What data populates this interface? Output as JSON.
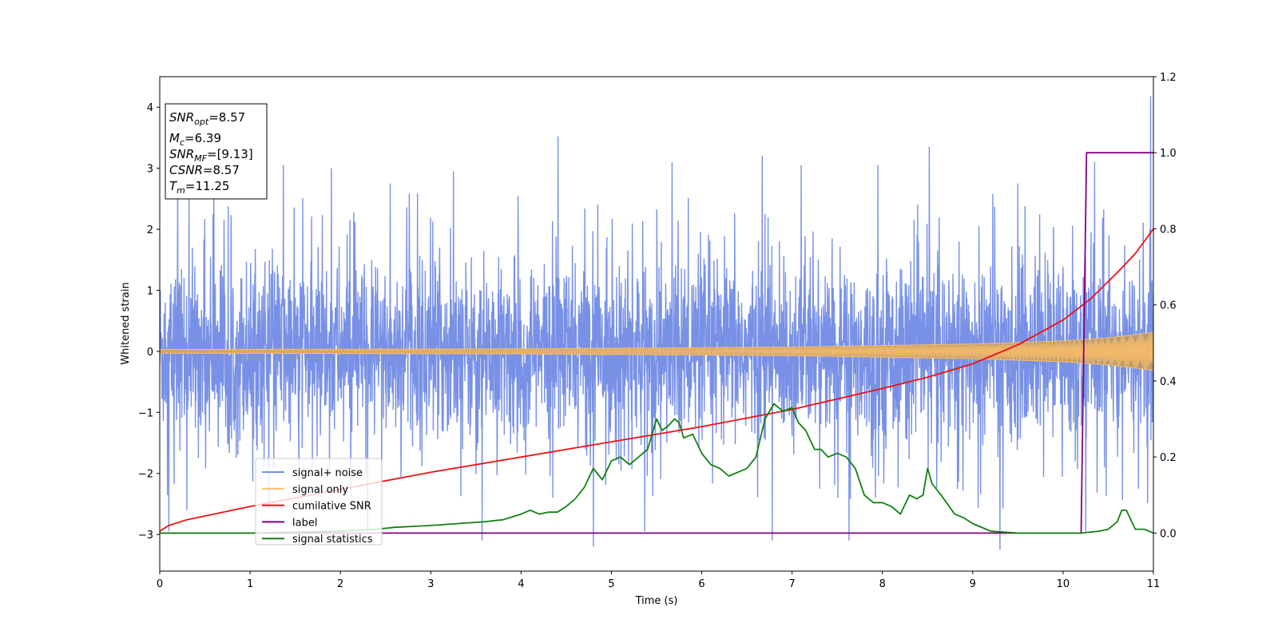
{
  "chart_data": {
    "type": "line",
    "xlabel": "Time (s)",
    "ylabel_left": "Whitened strain",
    "ylabel_right": "",
    "xlim": [
      0,
      11
    ],
    "ylim_left": [
      -3.6,
      4.5
    ],
    "ylim_right": [
      -0.1,
      1.2
    ],
    "xticks": [
      "0",
      "1",
      "2",
      "3",
      "4",
      "5",
      "6",
      "7",
      "8",
      "9",
      "10",
      "11"
    ],
    "yticks_left": [
      "4",
      "3",
      "2",
      "1",
      "0",
      "−1",
      "−2",
      "−3"
    ],
    "yticks_right": [
      "1.2",
      "1.0",
      "0.8",
      "0.6",
      "0.4",
      "0.2",
      "0.0"
    ],
    "grid": false,
    "legend_position": "lower-left",
    "info_box": {
      "lines": [
        {
          "base": "SNR",
          "sub": "opt",
          "eq": "=8.57"
        },
        {
          "base": "M",
          "sub": "c",
          "eq": "=6.39"
        },
        {
          "base": "SNR",
          "sub": "MF",
          "eq": "=[9.13]"
        },
        {
          "base": "CSNR",
          "sub": "",
          "eq": "=8.57"
        },
        {
          "base": "T",
          "sub": "m",
          "eq": "=11.25"
        }
      ]
    },
    "series": [
      {
        "name": "signal+ noise",
        "axis": "left",
        "color": "#7891e6",
        "description_type": "noise",
        "envelope": {
          "typical_max": 2.2,
          "typical_min": -1.8
        },
        "peaks": [
          {
            "x": 0.2,
            "y": 2.9
          },
          {
            "x": 0.6,
            "y": 2.75
          },
          {
            "x": 1.37,
            "y": 3.05
          },
          {
            "x": 1.9,
            "y": 3.0
          },
          {
            "x": 2.55,
            "y": 2.75
          },
          {
            "x": 3.25,
            "y": 2.95
          },
          {
            "x": 4.41,
            "y": 3.52
          },
          {
            "x": 5.67,
            "y": 3.1
          },
          {
            "x": 6.67,
            "y": 3.2
          },
          {
            "x": 7.1,
            "y": 3.05
          },
          {
            "x": 7.95,
            "y": 3.05
          },
          {
            "x": 8.52,
            "y": 3.35
          },
          {
            "x": 9.5,
            "y": 2.75
          },
          {
            "x": 10.35,
            "y": 3.1
          },
          {
            "x": 10.97,
            "y": 4.18
          }
        ],
        "troughs": [
          {
            "x": 0.1,
            "y": -2.95
          },
          {
            "x": 0.3,
            "y": -2.6
          },
          {
            "x": 2.3,
            "y": -2.95
          },
          {
            "x": 3.57,
            "y": -3.1
          },
          {
            "x": 4.8,
            "y": -3.2
          },
          {
            "x": 5.37,
            "y": -2.95
          },
          {
            "x": 6.78,
            "y": -3.1
          },
          {
            "x": 7.63,
            "y": -3.1
          },
          {
            "x": 9.3,
            "y": -3.25
          },
          {
            "x": 10.25,
            "y": -2.95
          }
        ]
      },
      {
        "name": "signal only",
        "axis": "left",
        "color": "#ffbf66",
        "description_type": "chirp",
        "amplitude": [
          {
            "x": 0,
            "y": 0.03
          },
          {
            "x": 4,
            "y": 0.04
          },
          {
            "x": 7,
            "y": 0.07
          },
          {
            "x": 9,
            "y": 0.12
          },
          {
            "x": 10,
            "y": 0.17
          },
          {
            "x": 10.5,
            "y": 0.22
          },
          {
            "x": 11,
            "y": 0.31
          }
        ]
      },
      {
        "name": "cumilative SNR",
        "axis": "right",
        "color": "#ee1111",
        "x": [
          0,
          0.1,
          0.3,
          0.6,
          1,
          2,
          3,
          4,
          5,
          6,
          7,
          8,
          8.5,
          9,
          9.5,
          10,
          10.3,
          10.6,
          10.8,
          11
        ],
        "y": [
          0.005,
          0.02,
          0.035,
          0.05,
          0.07,
          0.115,
          0.16,
          0.2,
          0.24,
          0.28,
          0.325,
          0.38,
          0.41,
          0.445,
          0.495,
          0.56,
          0.615,
          0.685,
          0.735,
          0.8
        ]
      },
      {
        "name": "label",
        "axis": "right",
        "color": "#800080",
        "x": [
          0,
          10.2,
          10.26,
          11
        ],
        "y": [
          0,
          0,
          1,
          1
        ]
      },
      {
        "name": "signal statistics",
        "axis": "right",
        "color": "#118111",
        "x": [
          0,
          1,
          2,
          2.4,
          2.6,
          3,
          3.3,
          3.6,
          3.8,
          4,
          4.1,
          4.2,
          4.3,
          4.4,
          4.5,
          4.6,
          4.7,
          4.8,
          4.9,
          5,
          5.1,
          5.2,
          5.3,
          5.4,
          5.5,
          5.56,
          5.62,
          5.7,
          5.75,
          5.8,
          5.9,
          6,
          6.1,
          6.2,
          6.3,
          6.4,
          6.5,
          6.6,
          6.7,
          6.8,
          6.9,
          7,
          7.07,
          7.15,
          7.25,
          7.32,
          7.4,
          7.5,
          7.6,
          7.7,
          7.8,
          7.9,
          8,
          8.1,
          8.2,
          8.3,
          8.38,
          8.45,
          8.5,
          8.55,
          8.65,
          8.8,
          8.9,
          9,
          9.2,
          9.5,
          10,
          10.2,
          10.4,
          10.5,
          10.6,
          10.65,
          10.7,
          10.8,
          10.9,
          11
        ],
        "y": [
          0,
          0,
          0.005,
          0.01,
          0.015,
          0.02,
          0.025,
          0.03,
          0.035,
          0.05,
          0.06,
          0.05,
          0.055,
          0.055,
          0.07,
          0.09,
          0.12,
          0.17,
          0.14,
          0.19,
          0.2,
          0.18,
          0.2,
          0.22,
          0.3,
          0.27,
          0.28,
          0.3,
          0.29,
          0.25,
          0.26,
          0.21,
          0.18,
          0.17,
          0.15,
          0.16,
          0.17,
          0.2,
          0.3,
          0.34,
          0.32,
          0.33,
          0.29,
          0.27,
          0.22,
          0.22,
          0.2,
          0.21,
          0.2,
          0.17,
          0.1,
          0.08,
          0.08,
          0.07,
          0.05,
          0.1,
          0.09,
          0.1,
          0.17,
          0.13,
          0.1,
          0.05,
          0.04,
          0.025,
          0.005,
          0.0,
          0.0,
          0.0,
          0.005,
          0.01,
          0.03,
          0.06,
          0.06,
          0.01,
          0.01,
          0.0
        ]
      }
    ]
  }
}
